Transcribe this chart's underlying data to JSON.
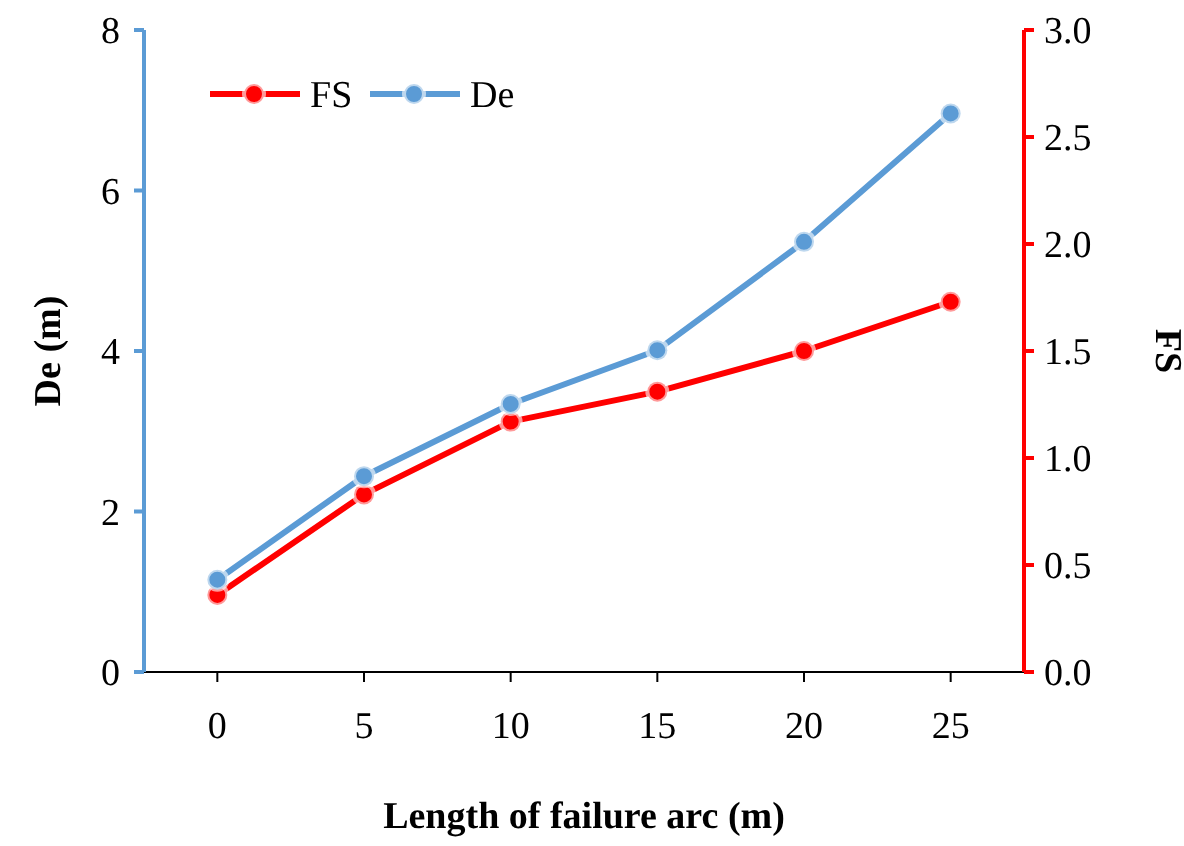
{
  "chart_data": {
    "type": "line",
    "xlabel": "Length of failure arc (m)",
    "ylabel": "De (m)",
    "y2label": "FS",
    "categories": [
      "0",
      "5",
      "10",
      "15",
      "20",
      "25"
    ],
    "series": [
      {
        "name": "FS",
        "color": "#ff0000",
        "axis": "y2",
        "values": [
          0.36,
          0.83,
          1.17,
          1.31,
          1.5,
          1.73
        ]
      },
      {
        "name": "De",
        "color": "#5b9bd5",
        "values": [
          1.15,
          2.44,
          3.34,
          4.01,
          5.36,
          6.96
        ]
      }
    ],
    "ylim": [
      0,
      8
    ],
    "yticks": [
      0,
      2,
      4,
      6,
      8
    ],
    "y2lim": [
      0,
      3
    ],
    "y2ticks": [
      {
        "value": 0,
        "label": "0.0"
      },
      {
        "value": 0.5,
        "label": "0.5"
      },
      {
        "value": 1,
        "label": "1.0"
      },
      {
        "value": 1.5,
        "label": "1.5"
      },
      {
        "value": 2,
        "label": "2.0"
      },
      {
        "value": 2.5,
        "label": "2.5"
      },
      {
        "value": 3,
        "label": "3.0"
      }
    ],
    "grid": false,
    "legend": "top left",
    "marker": "circle",
    "line_style": "solid"
  }
}
